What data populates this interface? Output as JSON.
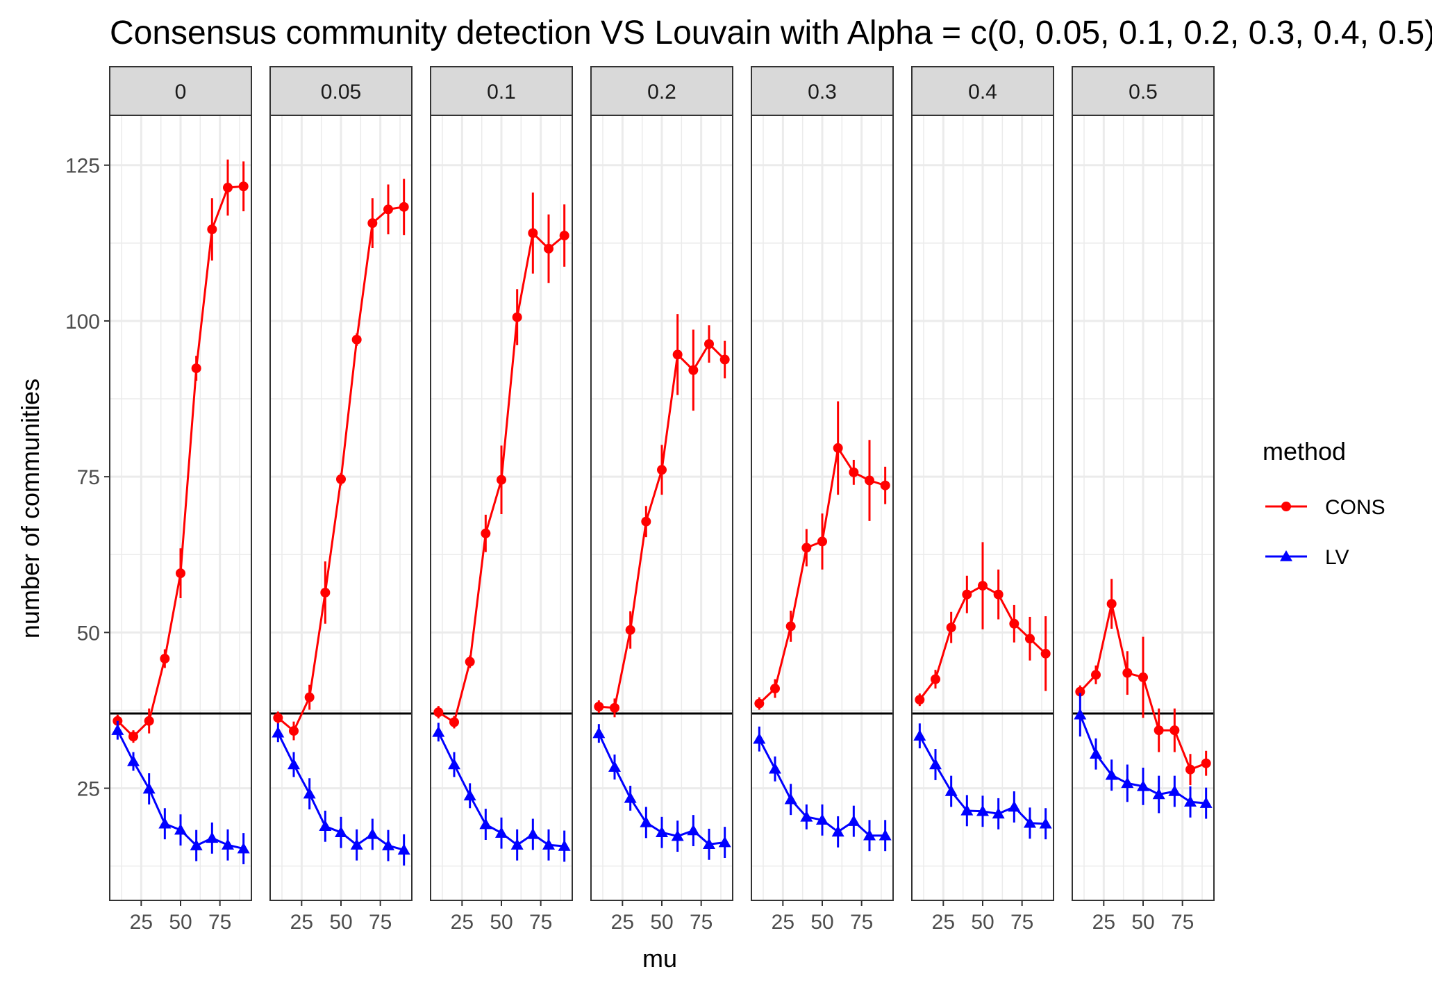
{
  "chart_data": {
    "type": "line",
    "title": "Consensus community detection VS Louvain with Alpha = c(0, 0.05, 0.1, 0.2, 0.3, 0.4, 0.5)",
    "xlabel": "mu",
    "ylabel": "number of communities",
    "x_ticks": [
      25,
      50,
      75
    ],
    "y_ticks": [
      25,
      50,
      75,
      100,
      125
    ],
    "xlim": [
      5,
      95
    ],
    "ylim": [
      7,
      133
    ],
    "reference_line": 37,
    "legend": {
      "title": "method",
      "position": "right"
    },
    "colors": {
      "CONS": "#ff0000",
      "LV": "#0000ff",
      "strip_fill": "#d9d9d9",
      "grid": "#ebebeb"
    },
    "x": [
      10,
      20,
      30,
      40,
      50,
      60,
      70,
      80,
      90
    ],
    "panels": [
      {
        "facet": "0",
        "series": [
          {
            "name": "CONS",
            "values": [
              35.8,
              33.3,
              35.8,
              45.8,
              59.5,
              92.4,
              114.7,
              121.4,
              121.6
            ],
            "errors": [
              1,
              1,
              2,
              1.5,
              4,
              2,
              5,
              4.5,
              4
            ]
          },
          {
            "name": "LV",
            "values": [
              34.3,
              29.3,
              24.9,
              19.3,
              18.3,
              15.8,
              17.0,
              15.9,
              15.3
            ],
            "errors": [
              1.5,
              1.5,
              2.5,
              2.5,
              2.5,
              2.5,
              2.5,
              2.5,
              2.5
            ]
          }
        ]
      },
      {
        "facet": "0.05",
        "series": [
          {
            "name": "CONS",
            "values": [
              36.3,
              34.2,
              39.6,
              56.4,
              74.6,
              97.0,
              115.7,
              117.9,
              118.3
            ],
            "errors": [
              1,
              1.5,
              2,
              5,
              1,
              1,
              4,
              4,
              4.5
            ]
          },
          {
            "name": "LV",
            "values": [
              33.9,
              28.8,
              24.1,
              18.9,
              17.9,
              15.9,
              17.6,
              15.8,
              15.1
            ],
            "errors": [
              1.5,
              2,
              2.5,
              2.5,
              2.5,
              2.5,
              2.5,
              2.5,
              2.5
            ]
          }
        ]
      },
      {
        "facet": "0.1",
        "series": [
          {
            "name": "CONS",
            "values": [
              37.2,
              35.6,
              45.3,
              65.9,
              74.5,
              100.6,
              114.1,
              111.6,
              113.7
            ],
            "errors": [
              1,
              1,
              1,
              3,
              5.5,
              4.5,
              6.5,
              5.5,
              5
            ]
          },
          {
            "name": "LV",
            "values": [
              34.0,
              28.8,
              23.8,
              19.2,
              17.8,
              15.9,
              17.6,
              15.9,
              15.7
            ],
            "errors": [
              1.5,
              2,
              2,
              2.5,
              2.5,
              2.5,
              2.5,
              2.5,
              2.5
            ]
          }
        ]
      },
      {
        "facet": "0.2",
        "series": [
          {
            "name": "CONS",
            "values": [
              38.1,
              37.9,
              50.4,
              67.8,
              76.1,
              94.6,
              92.1,
              96.3,
              93.8
            ],
            "errors": [
              1,
              1.5,
              3,
              2.5,
              4,
              6.5,
              6.5,
              3,
              3
            ]
          },
          {
            "name": "LV",
            "values": [
              33.8,
              28.4,
              23.4,
              19.5,
              17.9,
              17.3,
              18.2,
              16.0,
              16.3
            ],
            "errors": [
              1.5,
              2,
              2,
              2.5,
              2.5,
              2.5,
              2.5,
              2.5,
              2.5
            ]
          }
        ]
      },
      {
        "facet": "0.3",
        "series": [
          {
            "name": "CONS",
            "values": [
              38.6,
              41.0,
              51.0,
              63.6,
              64.6,
              79.6,
              75.7,
              74.4,
              73.6
            ],
            "errors": [
              1,
              1.5,
              2.5,
              3,
              4.5,
              7.5,
              2,
              6.5,
              3
            ]
          },
          {
            "name": "LV",
            "values": [
              32.9,
              28.1,
              23.2,
              20.4,
              19.9,
              18.0,
              19.7,
              17.4,
              17.4
            ],
            "errors": [
              2,
              2,
              2.5,
              2,
              2.5,
              2.5,
              2.5,
              2.5,
              2.5
            ]
          }
        ]
      },
      {
        "facet": "0.4",
        "series": [
          {
            "name": "CONS",
            "values": [
              39.2,
              42.5,
              50.8,
              56.1,
              57.5,
              56.1,
              51.4,
              49.0,
              46.6
            ],
            "errors": [
              1,
              1.5,
              2.5,
              3,
              7,
              4,
              3,
              3.5,
              6
            ]
          },
          {
            "name": "LV",
            "values": [
              33.4,
              28.8,
              24.5,
              21.4,
              21.3,
              20.9,
              22.0,
              19.4,
              19.3
            ],
            "errors": [
              2,
              2.5,
              2.5,
              2.5,
              2.5,
              2.5,
              2.5,
              2.5,
              2.5
            ]
          }
        ]
      },
      {
        "facet": "0.5",
        "series": [
          {
            "name": "CONS",
            "values": [
              40.5,
              43.2,
              54.6,
              43.5,
              42.8,
              34.3,
              34.3,
              28.0,
              29.0
            ],
            "errors": [
              1,
              1.5,
              4,
              3.5,
              6.5,
              3.5,
              3.5,
              2.5,
              2
            ]
          },
          {
            "name": "LV",
            "values": [
              36.8,
              30.5,
              27.1,
              25.8,
              25.3,
              24.0,
              24.5,
              22.8,
              22.6
            ],
            "errors": [
              3.5,
              2.5,
              2.5,
              3,
              3,
              3,
              2.5,
              2.5,
              2.5
            ]
          }
        ]
      }
    ]
  }
}
